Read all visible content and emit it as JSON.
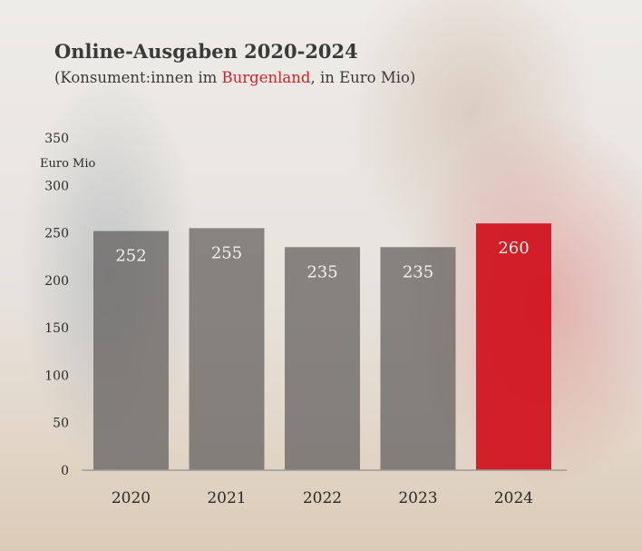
{
  "chart_data": {
    "type": "bar",
    "title": "Online-Ausgaben 2020-2024",
    "subtitle_parts": [
      "(Konsument:innen im ",
      "Burgenland",
      ", in Euro Mio)"
    ],
    "ylabel": "Euro Mio",
    "xlabel": "",
    "categories": [
      "2020",
      "2021",
      "2022",
      "2023",
      "2024"
    ],
    "values": [
      252,
      255,
      235,
      235,
      260
    ],
    "ylim": [
      0,
      350
    ],
    "yticks": [
      0,
      50,
      100,
      150,
      200,
      250,
      300,
      350
    ],
    "grid": false,
    "colors": {
      "default": "#5f5d5b",
      "highlight": "#d0101c",
      "accent_text": "#d9202a"
    },
    "highlight_index": 4
  }
}
